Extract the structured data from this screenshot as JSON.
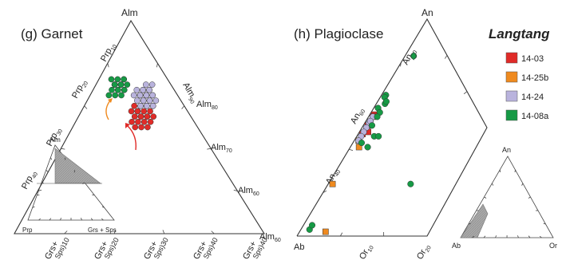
{
  "legend": {
    "title": "Langtang",
    "entries": [
      {
        "label": "14-03",
        "color": "#e02b28"
      },
      {
        "label": "14-25b",
        "color": "#ef8a1f"
      },
      {
        "label": "14-24",
        "color": "#b9b3dd"
      },
      {
        "label": "14-08a",
        "color": "#169a45"
      }
    ]
  },
  "chart_data": [
    {
      "type": "scatter",
      "subtype": "ternary",
      "title": "(g)  Garnet",
      "apices": {
        "top": "Alm",
        "left_label": "Grs+Sps",
        "right_label": "Prp"
      },
      "axis_labels": {
        "alm": [
          "Alm",
          "Alm",
          "Alm",
          "Alm"
        ],
        "alm_sub": [
          "90",
          "80",
          "70",
          "60"
        ],
        "prp": [
          "Prp",
          "Prp",
          "Prp",
          "Prp"
        ],
        "prp_sub": [
          "10",
          "20",
          "30",
          "40"
        ],
        "grs": [
          "Grs+",
          "Grs+",
          "Grs+",
          "Grs+"
        ],
        "grs_sub": [
          "Sps)10",
          "Sps)20",
          "Sps)30",
          "Sps)40"
        ]
      },
      "axis_range": {
        "Alm_percent_min": 60,
        "Alm_percent_max": 100
      },
      "series": [
        {
          "name": "14-03",
          "color": "#e02b28",
          "marker": "circle",
          "points": [
            [
              83,
              9,
              8
            ],
            [
              82,
              10,
              8
            ],
            [
              83,
              10,
              7
            ],
            [
              82,
              11,
              7
            ],
            [
              81,
              11,
              8
            ],
            [
              84,
              9,
              7
            ],
            [
              82,
              9,
              9
            ],
            [
              83,
              8,
              9
            ],
            [
              84,
              10,
              6
            ],
            [
              82,
              12,
              6
            ],
            [
              81,
              10,
              9
            ],
            [
              80,
              11,
              9
            ],
            [
              83,
              11,
              6
            ],
            [
              82,
              10,
              8
            ],
            [
              81,
              12,
              7
            ],
            [
              84,
              8,
              8
            ],
            [
              80,
              10,
              10
            ],
            [
              81,
              9,
              10
            ],
            [
              83,
              9,
              8
            ],
            [
              82,
              11,
              7
            ],
            [
              84,
              11,
              5
            ],
            [
              80,
              12,
              8
            ]
          ]
        },
        {
          "name": "14-25b",
          "color": "#ef8a1f",
          "marker": "circle",
          "points": [
            [
              87,
              8,
              5
            ],
            [
              86,
              9,
              5
            ],
            [
              87,
              9,
              4
            ]
          ]
        },
        {
          "name": "14-24",
          "color": "#b9b3dd",
          "marker": "circle",
          "points": [
            [
              87,
              8,
              5
            ],
            [
              86,
              8,
              6
            ],
            [
              86,
              9,
              5
            ],
            [
              86,
              8,
              6
            ],
            [
              86,
              9,
              5
            ],
            [
              85,
              9,
              6
            ],
            [
              85,
              9,
              6
            ],
            [
              85,
              10,
              5
            ],
            [
              84,
              10,
              6
            ],
            [
              87,
              7,
              6
            ],
            [
              86,
              7,
              7
            ],
            [
              85,
              8,
              7
            ],
            [
              84,
              10,
              6
            ],
            [
              86,
              8,
              6
            ],
            [
              87,
              8,
              5
            ],
            [
              85,
              11,
              4
            ],
            [
              86,
              10,
              4
            ],
            [
              87,
              9,
              4
            ],
            [
              88,
              8,
              4
            ],
            [
              88,
              9,
              3
            ],
            [
              84,
              9,
              7
            ],
            [
              85,
              10,
              5
            ],
            [
              86,
              10,
              4
            ],
            [
              84,
              11,
              5
            ]
          ]
        },
        {
          "name": "14-08a",
          "color": "#169a45",
          "marker": "circle",
          "points": [
            [
              88,
              4,
              8
            ],
            [
              87,
              4,
              9
            ],
            [
              88,
              3,
              9
            ],
            [
              87,
              3,
              10
            ],
            [
              88,
              4,
              8
            ],
            [
              89,
              3,
              8
            ],
            [
              89,
              4,
              7
            ],
            [
              88,
              5,
              7
            ],
            [
              87,
              5,
              8
            ],
            [
              88,
              3,
              9
            ],
            [
              88,
              3,
              9
            ],
            [
              87,
              4,
              9
            ],
            [
              88,
              4,
              8
            ],
            [
              87,
              5,
              8
            ],
            [
              89,
              2,
              9
            ],
            [
              86,
              4,
              10
            ],
            [
              86,
              5,
              9
            ],
            [
              88,
              3,
              9
            ],
            [
              89,
              4,
              7
            ],
            [
              86,
              3,
              11
            ]
          ]
        }
      ],
      "annotations": [
        {
          "text": "orange arrow",
          "desc": "zoning trend"
        },
        {
          "text": "red arrow",
          "desc": "zoning trend"
        }
      ],
      "inset": {
        "apices": {
          "top": "Alm",
          "left": "Prp",
          "right": "Grs + Sps"
        }
      }
    },
    {
      "type": "scatter",
      "subtype": "ternary",
      "title": "(h) Plagioclase",
      "apices": {
        "top": "An",
        "left": "Ab",
        "right_label": "Or"
      },
      "axis_labels": {
        "an": [
          "An",
          "An",
          "An",
          "An"
        ],
        "an_sub": [
          "80",
          "60",
          "40",
          "20"
        ],
        "or": [
          "Or",
          "Or"
        ],
        "or_sub": [
          "10",
          "20"
        ]
      },
      "axis_range": {
        "Or_percent_max": 40
      },
      "series": [
        {
          "name": "14-03",
          "color": "#e02b28",
          "marker": "square",
          "points": [
            [
              56,
              43,
              1
            ],
            [
              51,
              48,
              1
            ],
            [
              48,
              50,
              2
            ],
            [
              47,
              52,
              1
            ],
            [
              55,
              44,
              1
            ]
          ]
        },
        {
          "name": "14-25b",
          "color": "#ef8a1f",
          "marker": "square",
          "points": [
            [
              44,
              55,
              1
            ],
            [
              41,
              57,
              2
            ],
            [
              24,
              75,
              1
            ],
            [
              2,
              92,
              6
            ]
          ]
        },
        {
          "name": "14-24",
          "color": "#b9b3dd",
          "marker": "circle",
          "points": [
            [
              53,
              46,
              1
            ],
            [
              55,
              44,
              1
            ],
            [
              52,
              47,
              1
            ],
            [
              50,
              49,
              1
            ],
            [
              48,
              51,
              1
            ],
            [
              46,
              53,
              1
            ],
            [
              44,
              55,
              1
            ],
            [
              53,
              46,
              1
            ]
          ]
        },
        {
          "name": "14-08a",
          "color": "#169a45",
          "marker": "circle",
          "points": [
            [
              65,
              34,
              1
            ],
            [
              64,
              35,
              1
            ],
            [
              61,
              37,
              2
            ],
            [
              62,
              36,
              2
            ],
            [
              59,
              40,
              1
            ],
            [
              57,
              41,
              2
            ],
            [
              55,
              43,
              2
            ],
            [
              51,
              47,
              2
            ],
            [
              46,
              50,
              4
            ],
            [
              43,
              55,
              2
            ],
            [
              41,
              55,
              4
            ],
            [
              3,
              95,
              2
            ],
            [
              5,
              93,
              2
            ],
            [
              24,
              57,
              19
            ],
            [
              83,
              15,
              2
            ],
            [
              46,
              49,
              5
            ]
          ]
        }
      ],
      "inset": {
        "apices": {
          "top": "An",
          "left": "Ab",
          "right": "Or"
        }
      }
    }
  ]
}
